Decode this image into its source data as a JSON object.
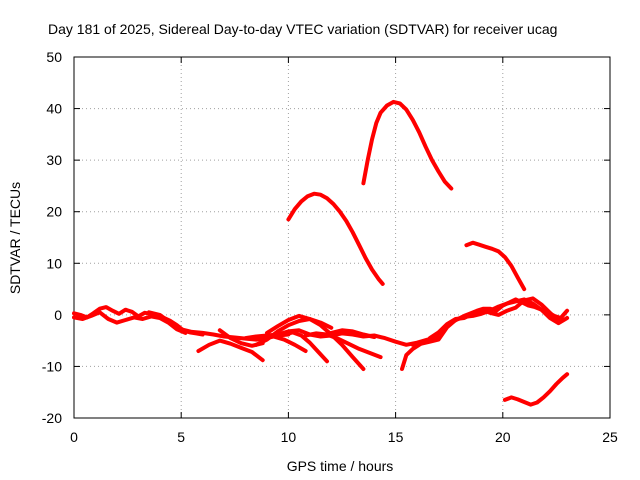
{
  "chart_data": {
    "type": "line",
    "title": "Day 181 of 2025, Sidereal Day-to-day VTEC variation (SDTVAR) for receiver ucag",
    "xlabel": "GPS time / hours",
    "ylabel": "SDTVAR / TECUs",
    "xlim": [
      0,
      25
    ],
    "ylim": [
      -20,
      50
    ],
    "xticks": [
      0,
      5,
      10,
      15,
      20,
      25
    ],
    "yticks": [
      -20,
      -10,
      0,
      10,
      20,
      30,
      40,
      50
    ],
    "grid": true,
    "series_color": "#ff0000",
    "series": [
      {
        "name": "arc-1",
        "x": [
          0.0,
          0.3,
          0.6,
          0.9,
          1.2,
          1.5,
          1.8,
          2.1,
          2.4,
          2.7,
          3.0,
          3.3,
          3.6,
          3.9,
          4.2,
          4.5,
          4.8,
          5.1,
          5.4,
          5.7,
          6.0
        ],
        "y": [
          0.3,
          0.0,
          -0.5,
          0.3,
          1.2,
          1.5,
          0.8,
          0.2,
          1.0,
          0.6,
          -0.3,
          0.4,
          0.2,
          -0.2,
          -0.6,
          -1.2,
          -2.0,
          -3.0,
          -3.4,
          -3.6,
          -3.8
        ]
      },
      {
        "name": "arc-2",
        "x": [
          0.0,
          0.4,
          0.8,
          1.2,
          1.6,
          2.0,
          2.4,
          2.8,
          3.2,
          3.6,
          4.0,
          4.4,
          4.8,
          5.2
        ],
        "y": [
          -0.5,
          -0.8,
          -0.2,
          0.5,
          -0.8,
          -1.5,
          -1.0,
          -0.5,
          -0.8,
          -0.3,
          -0.6,
          -1.5,
          -2.8,
          -3.5
        ]
      },
      {
        "name": "arc-3",
        "x": [
          3.5,
          4.0,
          4.5,
          5.0,
          5.5,
          6.0,
          6.5,
          7.0,
          7.5,
          8.0,
          8.5,
          9.0,
          9.5,
          10.0
        ],
        "y": [
          0.5,
          0.0,
          -1.5,
          -2.8,
          -3.3,
          -3.5,
          -3.8,
          -4.2,
          -4.4,
          -4.6,
          -4.8,
          -4.5,
          -4.0,
          -3.8
        ]
      },
      {
        "name": "arc-4",
        "x": [
          5.8,
          6.3,
          6.8,
          7.3,
          7.8,
          8.3,
          8.8
        ],
        "y": [
          -7.0,
          -5.8,
          -5.0,
          -5.6,
          -6.4,
          -7.2,
          -8.8
        ]
      },
      {
        "name": "arc-5",
        "x": [
          6.8,
          7.3,
          7.8,
          8.3,
          8.8
        ],
        "y": [
          -3.0,
          -4.5,
          -5.5,
          -6.0,
          -5.5
        ]
      },
      {
        "name": "arc-6",
        "x": [
          8.0,
          8.5,
          9.0,
          9.5,
          10.0,
          10.5,
          11.0,
          11.5,
          12.0,
          12.5,
          13.0,
          13.5,
          14.0,
          14.5,
          15.0,
          15.5,
          16.0,
          16.5,
          17.0
        ],
        "y": [
          -4.5,
          -4.2,
          -4.0,
          -3.8,
          -3.2,
          -3.0,
          -3.8,
          -4.2,
          -4.0,
          -3.6,
          -3.8,
          -4.2,
          -4.0,
          -4.5,
          -5.2,
          -5.8,
          -5.4,
          -4.8,
          -4.4
        ]
      },
      {
        "name": "arc-7",
        "x": [
          8.5,
          9.0,
          9.5,
          10.0,
          10.5,
          11.0,
          11.5,
          12.0
        ],
        "y": [
          -5.8,
          -4.8,
          -3.2,
          -2.0,
          -1.2,
          -0.8,
          -1.5,
          -2.5
        ]
      },
      {
        "name": "arc-8",
        "x": [
          9.0,
          9.5,
          10.0,
          10.5,
          11.0,
          11.5,
          12.0,
          12.5,
          13.0,
          13.5
        ],
        "y": [
          -3.5,
          -2.2,
          -1.0,
          -0.2,
          -0.8,
          -2.0,
          -3.8,
          -5.8,
          -8.2,
          -10.5
        ]
      },
      {
        "name": "arc-9",
        "x": [
          9.8,
          10.2,
          10.6,
          11.0,
          11.4,
          11.8
        ],
        "y": [
          -3.8,
          -3.4,
          -4.0,
          -5.4,
          -7.2,
          -9.0
        ]
      },
      {
        "name": "arc-10",
        "x": [
          9.3,
          9.8,
          10.3,
          10.8
        ],
        "y": [
          -4.2,
          -4.8,
          -5.8,
          -7.0
        ]
      },
      {
        "name": "arc-11",
        "x": [
          10.8,
          11.3,
          11.8,
          12.3,
          12.8,
          13.3,
          13.8,
          14.3
        ],
        "y": [
          -4.0,
          -3.6,
          -3.8,
          -4.6,
          -5.6,
          -6.6,
          -7.4,
          -8.2
        ]
      },
      {
        "name": "arc-12",
        "x": [
          12.0,
          12.5,
          13.0,
          13.5,
          14.0
        ],
        "y": [
          -3.5,
          -3.0,
          -3.2,
          -3.8,
          -4.3
        ]
      },
      {
        "name": "arc-13",
        "x": [
          10.0,
          10.3,
          10.6,
          10.9,
          11.2,
          11.5,
          11.8,
          12.1,
          12.4,
          12.7,
          13.0,
          13.3,
          13.6,
          13.9,
          14.2,
          14.4
        ],
        "y": [
          18.5,
          20.5,
          22.0,
          23.0,
          23.5,
          23.3,
          22.6,
          21.5,
          20.0,
          18.2,
          16.0,
          13.5,
          11.0,
          8.8,
          7.0,
          6.0
        ]
      },
      {
        "name": "arc-14",
        "x": [
          13.5,
          13.7,
          13.9,
          14.1,
          14.3,
          14.6,
          14.9,
          15.2,
          15.5,
          15.8,
          16.1,
          16.4,
          16.7,
          17.0,
          17.3,
          17.6
        ],
        "y": [
          25.5,
          30.0,
          34.0,
          37.2,
          39.2,
          40.6,
          41.3,
          41.0,
          39.8,
          37.8,
          35.4,
          32.6,
          30.0,
          27.8,
          25.8,
          24.5
        ]
      },
      {
        "name": "arc-15",
        "x": [
          18.3,
          18.6,
          18.9,
          19.2,
          19.5,
          19.8,
          20.1,
          20.4,
          20.7,
          21.0
        ],
        "y": [
          13.5,
          14.0,
          13.6,
          13.2,
          12.8,
          12.3,
          11.2,
          9.5,
          7.2,
          5.0
        ]
      },
      {
        "name": "arc-16",
        "x": [
          15.3,
          15.5,
          15.8,
          16.1,
          16.4,
          16.7,
          17.0,
          17.3,
          17.6,
          17.9,
          18.2,
          18.5,
          18.8,
          19.1,
          19.4,
          19.7,
          20.0,
          20.3,
          20.6,
          20.9,
          21.2,
          21.5,
          21.8,
          22.1,
          22.4,
          22.7,
          23.0
        ],
        "y": [
          -10.5,
          -7.8,
          -6.6,
          -5.8,
          -5.0,
          -4.5,
          -3.6,
          -2.4,
          -1.5,
          -0.8,
          -0.2,
          0.3,
          0.8,
          1.2,
          1.2,
          0.8,
          1.8,
          2.4,
          3.0,
          2.4,
          1.8,
          1.5,
          1.0,
          0.5,
          -0.2,
          -0.6,
          0.8
        ]
      },
      {
        "name": "arc-17",
        "x": [
          15.8,
          16.2,
          16.6,
          17.0,
          17.4,
          17.8,
          18.2,
          18.6,
          19.0,
          19.4,
          19.8,
          20.2,
          20.6,
          21.0,
          21.4,
          21.8,
          22.2,
          22.6,
          23.0
        ],
        "y": [
          -5.8,
          -5.6,
          -5.2,
          -4.8,
          -2.4,
          -1.0,
          -0.4,
          -0.2,
          0.2,
          0.8,
          1.6,
          2.2,
          2.6,
          3.0,
          2.2,
          1.0,
          -0.6,
          -1.6,
          -0.6
        ]
      },
      {
        "name": "arc-18",
        "x": [
          16.6,
          17.0,
          17.4,
          17.8,
          18.2,
          18.6,
          19.0,
          19.4,
          19.8,
          20.2,
          20.6,
          21.0,
          21.4,
          21.8,
          22.2,
          22.6
        ],
        "y": [
          -4.5,
          -3.4,
          -1.8,
          -0.8,
          -0.6,
          0.2,
          1.0,
          0.4,
          0.0,
          0.8,
          1.4,
          2.8,
          3.2,
          2.0,
          0.4,
          -1.2
        ]
      },
      {
        "name": "arc-19",
        "x": [
          20.1,
          20.4,
          20.7,
          21.0,
          21.3,
          21.6,
          21.9,
          22.2,
          22.5,
          22.8,
          23.0
        ],
        "y": [
          -16.5,
          -16.0,
          -16.4,
          -16.9,
          -17.4,
          -17.0,
          -16.0,
          -14.8,
          -13.4,
          -12.2,
          -11.5
        ]
      }
    ]
  }
}
